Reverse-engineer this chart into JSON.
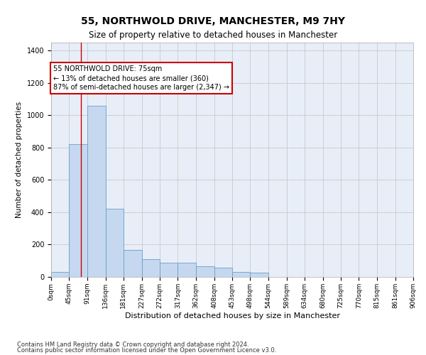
{
  "title": "55, NORTHWOLD DRIVE, MANCHESTER, M9 7HY",
  "subtitle": "Size of property relative to detached houses in Manchester",
  "xlabel": "Distribution of detached houses by size in Manchester",
  "ylabel": "Number of detached properties",
  "bin_edges": [
    0,
    45,
    91,
    136,
    181,
    227,
    272,
    317,
    362,
    408,
    453,
    498,
    544,
    589,
    634,
    680,
    725,
    770,
    815,
    861,
    906
  ],
  "bar_heights": [
    30,
    820,
    1060,
    420,
    165,
    110,
    90,
    90,
    65,
    55,
    30,
    25,
    0,
    0,
    0,
    0,
    0,
    0,
    0,
    0
  ],
  "bar_color": "#c5d8ef",
  "bar_edge_color": "#6a9fcb",
  "bar_linewidth": 0.6,
  "grid_color": "#c8c8c8",
  "bg_color": "#e8eef8",
  "property_size": 75,
  "red_line_color": "#cc0000",
  "annotation_text": "55 NORTHWOLD DRIVE: 75sqm\n← 13% of detached houses are smaller (360)\n87% of semi-detached houses are larger (2,347) →",
  "annotation_box_color": "#ffffff",
  "annotation_box_edge": "#cc0000",
  "ylim": [
    0,
    1450
  ],
  "yticks": [
    0,
    200,
    400,
    600,
    800,
    1000,
    1200,
    1400
  ],
  "footer1": "Contains HM Land Registry data © Crown copyright and database right 2024.",
  "footer2": "Contains public sector information licensed under the Open Government Licence v3.0.",
  "title_fontsize": 10,
  "subtitle_fontsize": 8.5,
  "xlabel_fontsize": 8,
  "ylabel_fontsize": 7.5,
  "tick_fontsize": 6.5,
  "annotation_fontsize": 7,
  "footer_fontsize": 6
}
